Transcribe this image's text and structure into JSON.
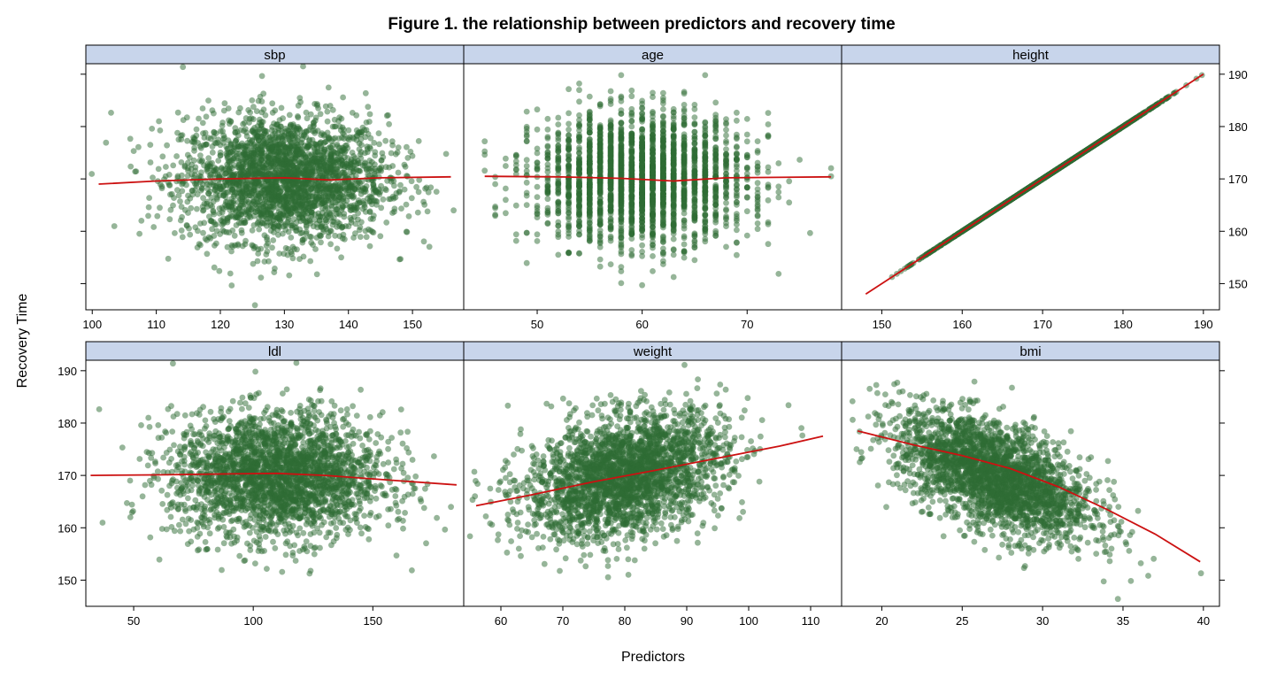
{
  "chart_data": {
    "type": "scatter",
    "title": "Figure 1. the relationship between predictors and recovery time",
    "xlabel": "Predictors",
    "ylabel": "Recovery Time",
    "colors": {
      "point": "#2e6b33",
      "smooth": "#cc1111",
      "strip": "#c8d5eb"
    },
    "ylim": [
      145,
      192
    ],
    "yticks": [
      150,
      160,
      170,
      180,
      190
    ],
    "layout": {
      "rows": 2,
      "cols": 3
    },
    "panels": [
      {
        "name": "sbp",
        "xlim": [
          99,
          158
        ],
        "xticks": [
          100,
          110,
          120,
          130,
          140,
          150
        ],
        "x_distribution": {
          "mean": 130,
          "sd": 8,
          "discrete": false
        },
        "y_distribution": {
          "mean": 170,
          "sd": 6
        },
        "smooth": {
          "x": [
            101,
            110,
            120,
            130,
            137,
            145,
            156
          ],
          "y": [
            169.0,
            169.6,
            170.0,
            170.2,
            169.8,
            170.2,
            170.4
          ]
        }
      },
      {
        "name": "age",
        "xlim": [
          43,
          79
        ],
        "xticks": [
          50,
          60,
          70
        ],
        "x_distribution": {
          "mean": 60,
          "sd": 5,
          "discrete": true
        },
        "y_distribution": {
          "mean": 170,
          "sd": 6
        },
        "smooth": {
          "x": [
            45,
            52,
            58,
            63,
            68,
            78
          ],
          "y": [
            170.5,
            170.4,
            170.1,
            169.6,
            170.2,
            170.4
          ]
        }
      },
      {
        "name": "height",
        "xlim": [
          145,
          192
        ],
        "xticks": [
          150,
          160,
          170,
          180,
          190
        ],
        "x_distribution": {
          "mean": 170,
          "sd": 6,
          "discrete": false
        },
        "y_distribution": {
          "mean": 170,
          "sd": 6,
          "equals_x": true
        },
        "smooth": {
          "x": [
            148,
            190
          ],
          "y": [
            148,
            190
          ]
        }
      },
      {
        "name": "ldl",
        "xlim": [
          30,
          188
        ],
        "xticks": [
          50,
          100,
          150
        ],
        "x_distribution": {
          "mean": 110,
          "sd": 22,
          "discrete": false
        },
        "y_distribution": {
          "mean": 170,
          "sd": 6
        },
        "smooth": {
          "x": [
            32,
            60,
            90,
            110,
            130,
            160,
            185
          ],
          "y": [
            170.0,
            170.1,
            170.3,
            170.4,
            170.0,
            169.0,
            168.2
          ]
        }
      },
      {
        "name": "weight",
        "xlim": [
          54,
          115
        ],
        "xticks": [
          60,
          70,
          80,
          90,
          100,
          110
        ],
        "x_distribution": {
          "mean": 80,
          "sd": 8,
          "discrete": false
        },
        "y_distribution": {
          "mean": 170,
          "sd": 6,
          "slope": 0.25
        },
        "smooth": {
          "x": [
            56,
            65,
            75,
            85,
            95,
            105,
            112
          ],
          "y": [
            164.2,
            166.3,
            168.8,
            171.0,
            173.3,
            175.6,
            177.5
          ]
        }
      },
      {
        "name": "bmi",
        "xlim": [
          17.5,
          41
        ],
        "xticks": [
          20,
          25,
          30,
          35,
          40
        ],
        "x_distribution": {
          "mean": 27,
          "sd": 3,
          "discrete": false
        },
        "y_distribution": {
          "mean": 170,
          "sd": 6,
          "slope": -1.1
        },
        "smooth": {
          "x": [
            18.5,
            22,
            25,
            28,
            31,
            34,
            37,
            39.8
          ],
          "y": [
            178.5,
            175.8,
            173.8,
            171.3,
            167.8,
            163.5,
            158.8,
            153.5
          ]
        }
      }
    ]
  }
}
